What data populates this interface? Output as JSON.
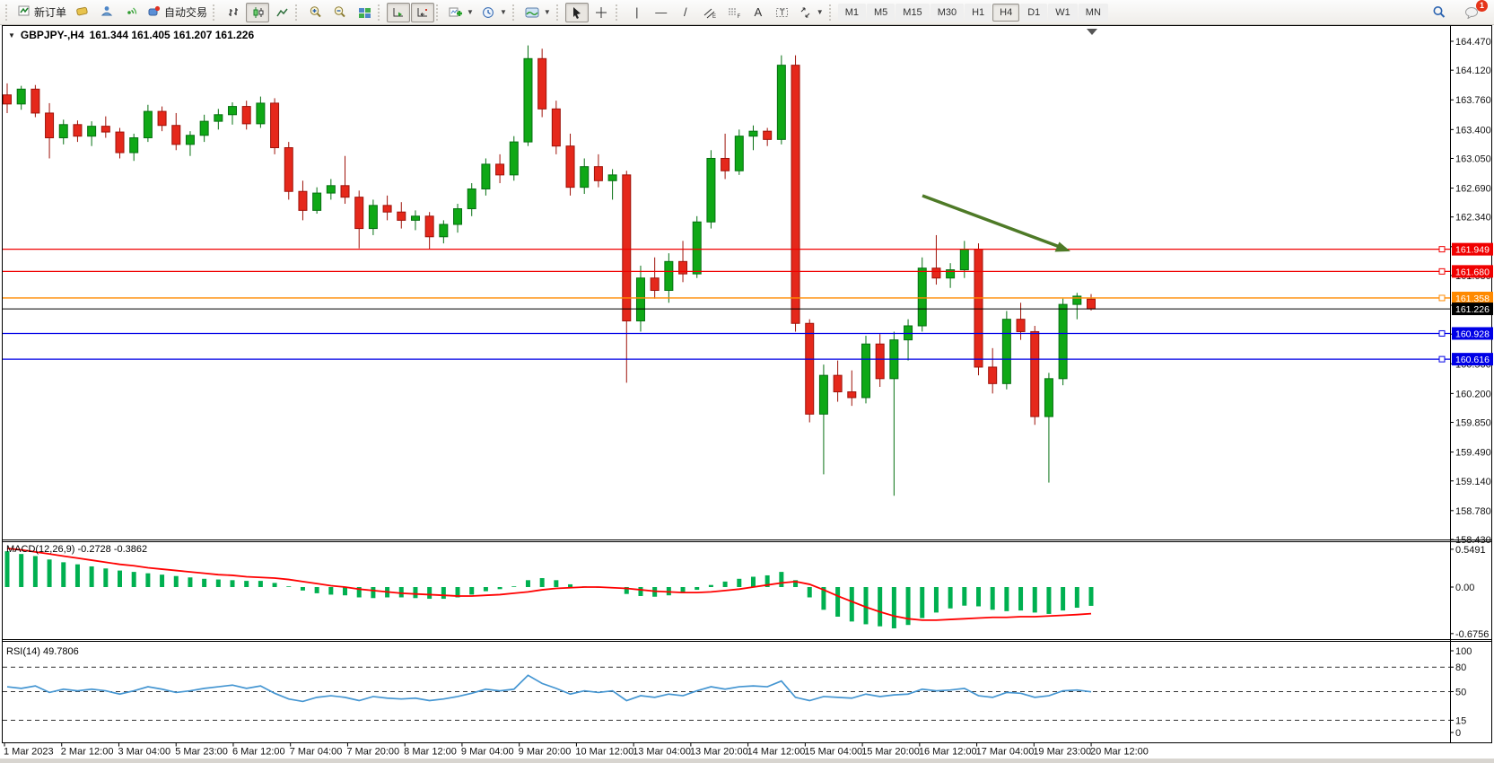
{
  "toolbar": {
    "new_order": "新订单",
    "autotrading": "自动交易",
    "timeframes": [
      "M1",
      "M5",
      "M15",
      "M30",
      "H1",
      "H4",
      "D1",
      "W1",
      "MN"
    ],
    "active_timeframe": "H4",
    "notification_badge": "1",
    "tool_glyphs": {
      "vline": "|",
      "hline": "—",
      "trend": "/",
      "text": "A",
      "text_label": "T",
      "channel_sub": "E",
      "fibo_sub": "F"
    }
  },
  "chart": {
    "title": "GBPJPY-,H4",
    "ohlc": "161.344 161.405 161.207 161.226"
  },
  "chart_data": {
    "type": "candlestick",
    "title": "GBPJPY-,H4",
    "current_bar": {
      "open": 161.344,
      "high": 161.405,
      "low": 161.207,
      "close": 161.226
    },
    "ylim": [
      158.43,
      164.47
    ],
    "price_ticks": [
      164.47,
      164.12,
      163.76,
      163.4,
      163.05,
      162.69,
      162.34,
      161.98,
      161.63,
      161.27,
      160.92,
      160.56,
      160.2,
      159.85,
      159.49,
      159.14,
      158.78,
      158.43
    ],
    "levels": [
      {
        "price": 161.949,
        "label": "161.949",
        "color": "#f00000"
      },
      {
        "price": 161.68,
        "label": "161.680",
        "color": "#f00000"
      },
      {
        "price": 161.358,
        "label": "161.358",
        "color": "#ff8a00"
      },
      {
        "price": 160.928,
        "label": "160.928",
        "color": "#0000e6"
      },
      {
        "price": 160.616,
        "label": "160.616",
        "color": "#0000e6"
      }
    ],
    "current_price": {
      "price": 161.226,
      "label": "161.226",
      "color": "#000000"
    },
    "time_labels": [
      "1 Mar 2023",
      "2 Mar 12:00",
      "3 Mar 04:00",
      "5 Mar 23:00",
      "6 Mar 12:00",
      "7 Mar 04:00",
      "7 Mar 20:00",
      "8 Mar 12:00",
      "9 Mar 04:00",
      "9 Mar 20:00",
      "10 Mar 12:00",
      "13 Mar 04:00",
      "13 Mar 20:00",
      "14 Mar 12:00",
      "15 Mar 04:00",
      "15 Mar 20:00",
      "16 Mar 12:00",
      "17 Mar 04:00",
      "19 Mar 23:00",
      "20 Mar 12:00"
    ],
    "candles": [
      [
        163.82,
        163.96,
        163.6,
        163.71
      ],
      [
        163.71,
        163.93,
        163.64,
        163.89
      ],
      [
        163.89,
        163.94,
        163.55,
        163.6
      ],
      [
        163.6,
        163.72,
        163.05,
        163.3
      ],
      [
        163.3,
        163.52,
        163.22,
        163.46
      ],
      [
        163.46,
        163.51,
        163.25,
        163.32
      ],
      [
        163.32,
        163.5,
        163.2,
        163.44
      ],
      [
        163.44,
        163.56,
        163.3,
        163.37
      ],
      [
        163.37,
        163.42,
        163.05,
        163.12
      ],
      [
        163.12,
        163.35,
        163.02,
        163.3
      ],
      [
        163.3,
        163.7,
        163.25,
        163.62
      ],
      [
        163.62,
        163.68,
        163.38,
        163.45
      ],
      [
        163.45,
        163.6,
        163.15,
        163.22
      ],
      [
        163.22,
        163.38,
        163.08,
        163.33
      ],
      [
        163.33,
        163.58,
        163.25,
        163.5
      ],
      [
        163.5,
        163.65,
        163.4,
        163.58
      ],
      [
        163.58,
        163.73,
        163.46,
        163.68
      ],
      [
        163.68,
        163.75,
        163.4,
        163.47
      ],
      [
        163.47,
        163.8,
        163.42,
        163.72
      ],
      [
        163.72,
        163.78,
        163.1,
        163.18
      ],
      [
        163.18,
        163.25,
        162.55,
        162.65
      ],
      [
        162.65,
        162.78,
        162.3,
        162.42
      ],
      [
        162.42,
        162.7,
        162.38,
        162.63
      ],
      [
        162.63,
        162.8,
        162.55,
        162.72
      ],
      [
        162.72,
        163.08,
        162.5,
        162.58
      ],
      [
        162.58,
        162.66,
        161.96,
        162.2
      ],
      [
        162.2,
        162.55,
        162.12,
        162.48
      ],
      [
        162.48,
        162.6,
        162.3,
        162.4
      ],
      [
        162.4,
        162.52,
        162.2,
        162.3
      ],
      [
        162.3,
        162.42,
        162.18,
        162.35
      ],
      [
        162.35,
        162.4,
        161.95,
        162.1
      ],
      [
        162.1,
        162.3,
        162.02,
        162.25
      ],
      [
        162.25,
        162.5,
        162.15,
        162.44
      ],
      [
        162.44,
        162.75,
        162.35,
        162.68
      ],
      [
        162.68,
        163.05,
        162.6,
        162.98
      ],
      [
        162.98,
        163.1,
        162.75,
        162.85
      ],
      [
        162.85,
        163.32,
        162.78,
        163.25
      ],
      [
        163.25,
        164.42,
        163.2,
        164.26
      ],
      [
        164.26,
        164.38,
        163.55,
        163.65
      ],
      [
        163.65,
        163.75,
        163.1,
        163.2
      ],
      [
        163.2,
        163.35,
        162.6,
        162.7
      ],
      [
        162.7,
        163.05,
        162.62,
        162.95
      ],
      [
        162.95,
        163.1,
        162.7,
        162.78
      ],
      [
        162.78,
        162.92,
        162.55,
        162.85
      ],
      [
        162.85,
        162.9,
        160.33,
        161.08
      ],
      [
        161.08,
        161.75,
        160.95,
        161.6
      ],
      [
        161.6,
        161.85,
        161.35,
        161.45
      ],
      [
        161.45,
        161.9,
        161.3,
        161.8
      ],
      [
        161.8,
        162.05,
        161.55,
        161.65
      ],
      [
        161.65,
        162.35,
        161.6,
        162.28
      ],
      [
        162.28,
        163.15,
        162.2,
        163.05
      ],
      [
        163.05,
        163.35,
        162.8,
        162.9
      ],
      [
        162.9,
        163.4,
        162.85,
        163.32
      ],
      [
        163.32,
        163.45,
        163.15,
        163.38
      ],
      [
        163.38,
        163.42,
        163.2,
        163.28
      ],
      [
        163.28,
        164.3,
        163.22,
        164.18
      ],
      [
        164.18,
        164.3,
        160.95,
        161.05
      ],
      [
        161.05,
        161.1,
        159.85,
        159.95
      ],
      [
        159.95,
        160.55,
        159.22,
        160.42
      ],
      [
        160.42,
        160.6,
        160.1,
        160.22
      ],
      [
        160.22,
        160.48,
        160.05,
        160.15
      ],
      [
        160.15,
        160.9,
        160.08,
        160.8
      ],
      [
        160.8,
        160.92,
        160.28,
        160.38
      ],
      [
        160.38,
        160.95,
        158.96,
        160.85
      ],
      [
        160.85,
        161.1,
        160.6,
        161.02
      ],
      [
        161.02,
        161.85,
        160.95,
        161.72
      ],
      [
        161.72,
        162.12,
        161.52,
        161.6
      ],
      [
        161.6,
        161.78,
        161.48,
        161.7
      ],
      [
        161.7,
        162.05,
        161.6,
        161.95
      ],
      [
        161.95,
        162.02,
        160.42,
        160.52
      ],
      [
        160.52,
        160.75,
        160.2,
        160.32
      ],
      [
        160.32,
        161.2,
        160.25,
        161.1
      ],
      [
        161.1,
        161.3,
        160.85,
        160.95
      ],
      [
        160.95,
        161.02,
        159.82,
        159.92
      ],
      [
        159.92,
        160.45,
        159.12,
        160.38
      ],
      [
        160.38,
        161.35,
        160.3,
        161.28
      ],
      [
        161.28,
        161.42,
        161.1,
        161.38
      ],
      [
        161.344,
        161.405,
        161.207,
        161.226
      ]
    ],
    "macd": {
      "label": "MACD(12,26,9)",
      "values_text": "-0.2728 -0.3862",
      "axis_values": [
        0.5491,
        0.0,
        -0.6756
      ],
      "axis_labels": [
        "0.5491",
        "0.00",
        "-0.6756"
      ],
      "histogram": [
        0.52,
        0.48,
        0.45,
        0.4,
        0.36,
        0.33,
        0.3,
        0.27,
        0.24,
        0.22,
        0.2,
        0.18,
        0.16,
        0.14,
        0.12,
        0.11,
        0.1,
        0.09,
        0.09,
        0.06,
        0.01,
        -0.05,
        -0.09,
        -0.11,
        -0.12,
        -0.15,
        -0.16,
        -0.15,
        -0.15,
        -0.16,
        -0.17,
        -0.17,
        -0.15,
        -0.11,
        -0.06,
        -0.03,
        0.01,
        0.1,
        0.13,
        0.1,
        0.04,
        0.01,
        -0.01,
        -0.02,
        -0.1,
        -0.13,
        -0.14,
        -0.12,
        -0.09,
        -0.04,
        0.03,
        0.08,
        0.12,
        0.15,
        0.17,
        0.22,
        0.1,
        -0.15,
        -0.33,
        -0.43,
        -0.5,
        -0.54,
        -0.57,
        -0.6,
        -0.55,
        -0.45,
        -0.37,
        -0.31,
        -0.27,
        -0.28,
        -0.33,
        -0.35,
        -0.34,
        -0.37,
        -0.39,
        -0.34,
        -0.3,
        -0.2728
      ],
      "signal": [
        0.56,
        0.54,
        0.51,
        0.48,
        0.45,
        0.42,
        0.39,
        0.36,
        0.33,
        0.31,
        0.28,
        0.26,
        0.24,
        0.22,
        0.2,
        0.18,
        0.17,
        0.15,
        0.14,
        0.13,
        0.11,
        0.08,
        0.05,
        0.02,
        0.0,
        -0.03,
        -0.05,
        -0.07,
        -0.09,
        -0.1,
        -0.11,
        -0.12,
        -0.13,
        -0.13,
        -0.12,
        -0.11,
        -0.09,
        -0.07,
        -0.04,
        -0.02,
        -0.01,
        0.0,
        0.0,
        -0.01,
        -0.02,
        -0.04,
        -0.06,
        -0.07,
        -0.08,
        -0.08,
        -0.07,
        -0.05,
        -0.03,
        0.0,
        0.03,
        0.06,
        0.08,
        0.04,
        -0.04,
        -0.13,
        -0.21,
        -0.29,
        -0.36,
        -0.42,
        -0.46,
        -0.48,
        -0.48,
        -0.47,
        -0.46,
        -0.45,
        -0.44,
        -0.44,
        -0.43,
        -0.43,
        -0.42,
        -0.41,
        -0.4,
        -0.3862
      ]
    },
    "rsi": {
      "label": "RSI(14)",
      "value_text": "49.7806",
      "axis_labels": [
        "100",
        "80",
        "50",
        "15",
        "0"
      ],
      "level_lines": [
        80,
        50,
        15
      ],
      "ylim": [
        0,
        100
      ],
      "values": [
        56,
        54,
        57,
        49,
        53,
        51,
        53,
        51,
        47,
        51,
        56,
        53,
        49,
        51,
        54,
        56,
        58,
        54,
        57,
        48,
        41,
        38,
        43,
        45,
        43,
        39,
        44,
        42,
        41,
        42,
        39,
        41,
        44,
        48,
        53,
        51,
        53,
        70,
        60,
        54,
        47,
        51,
        49,
        51,
        39,
        45,
        43,
        47,
        45,
        51,
        56,
        53,
        56,
        57,
        56,
        63,
        43,
        39,
        44,
        43,
        42,
        47,
        44,
        46,
        47,
        53,
        51,
        52,
        54,
        45,
        43,
        49,
        48,
        43,
        45,
        51,
        52,
        49.7806
      ]
    },
    "annotation": {
      "type": "arrow",
      "direction": "down-right",
      "color": "#4e7a27"
    },
    "colors": {
      "up": "#0fa816",
      "up_border": "#067012",
      "down": "#e5281b",
      "down_border": "#9e1209",
      "macd_hist": "#00b050",
      "macd_signal": "#ff0000",
      "rsi_line": "#4596d2"
    }
  }
}
